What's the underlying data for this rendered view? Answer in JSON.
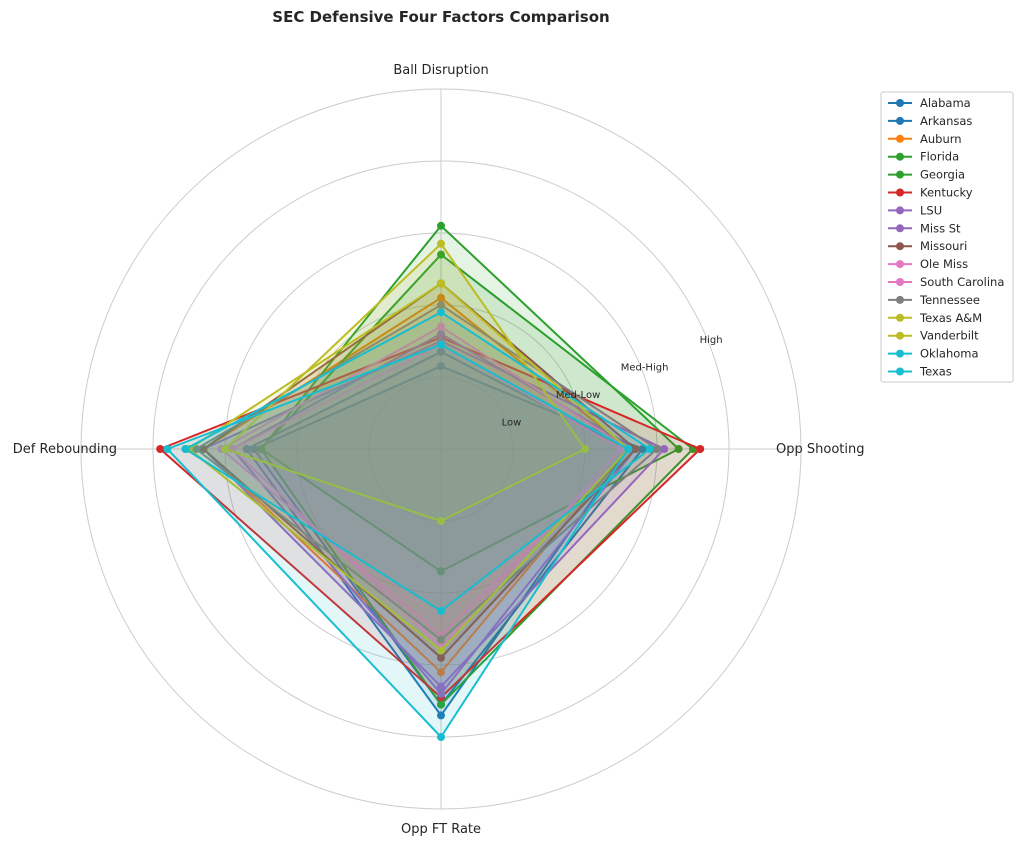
{
  "chart_data": {
    "type": "radar",
    "title": "SEC Defensive Four Factors Comparison",
    "axes": [
      "Ball Disruption",
      "Opp Shooting",
      "Opp FT Rate",
      "Def Rebounding"
    ],
    "rlim": [
      0,
      5
    ],
    "ring_labels": [
      {
        "r": 1,
        "label": "Low"
      },
      {
        "r": 2,
        "label": "Med-Low"
      },
      {
        "r": 3,
        "label": "Med-High"
      },
      {
        "r": 4,
        "label": "High"
      }
    ],
    "grid": true,
    "legend_position": "upper-right-outside",
    "series": [
      {
        "name": "Alabama",
        "color": "#1f77b4",
        "values": [
          1.35,
          2.6,
          3.7,
          2.7
        ]
      },
      {
        "name": "Arkansas",
        "color": "#1f77b4",
        "values": [
          1.15,
          2.8,
          3.55,
          2.6
        ]
      },
      {
        "name": "Auburn",
        "color": "#ff7f0e",
        "values": [
          2.1,
          2.6,
          3.1,
          3.3
        ]
      },
      {
        "name": "Florida",
        "color": "#2ca02c",
        "values": [
          2.7,
          3.5,
          3.55,
          2.5
        ]
      },
      {
        "name": "Georgia",
        "color": "#2ca02c",
        "values": [
          3.1,
          3.3,
          1.7,
          2.5
        ]
      },
      {
        "name": "Kentucky",
        "color": "#d62728",
        "values": [
          1.55,
          3.6,
          3.45,
          3.9
        ]
      },
      {
        "name": "LSU",
        "color": "#9467bd",
        "values": [
          1.5,
          3.1,
          3.3,
          3.3
        ]
      },
      {
        "name": "Miss St",
        "color": "#9467bd",
        "values": [
          1.6,
          2.7,
          3.4,
          2.9
        ]
      },
      {
        "name": "Missouri",
        "color": "#8c564b",
        "values": [
          2.3,
          2.7,
          2.9,
          3.3
        ]
      },
      {
        "name": "Ole Miss",
        "color": "#e377c2",
        "values": [
          1.45,
          2.5,
          2.75,
          2.9
        ]
      },
      {
        "name": "South Carolina",
        "color": "#e377c2",
        "values": [
          1.7,
          2.6,
          2.6,
          3.05
        ]
      },
      {
        "name": "Tennessee",
        "color": "#7f7f7f",
        "values": [
          2.0,
          3.0,
          2.65,
          3.4
        ]
      },
      {
        "name": "Texas A&M",
        "color": "#bcbd22",
        "values": [
          2.3,
          2.6,
          2.8,
          3.5
        ]
      },
      {
        "name": "Vanderbilt",
        "color": "#bcbd22",
        "values": [
          2.85,
          2.0,
          1.0,
          3.0
        ]
      },
      {
        "name": "Oklahoma",
        "color": "#17becf",
        "values": [
          1.9,
          2.9,
          2.25,
          3.55
        ]
      },
      {
        "name": "Texas",
        "color": "#17becf",
        "values": [
          1.45,
          2.6,
          4.0,
          3.8
        ]
      }
    ]
  }
}
